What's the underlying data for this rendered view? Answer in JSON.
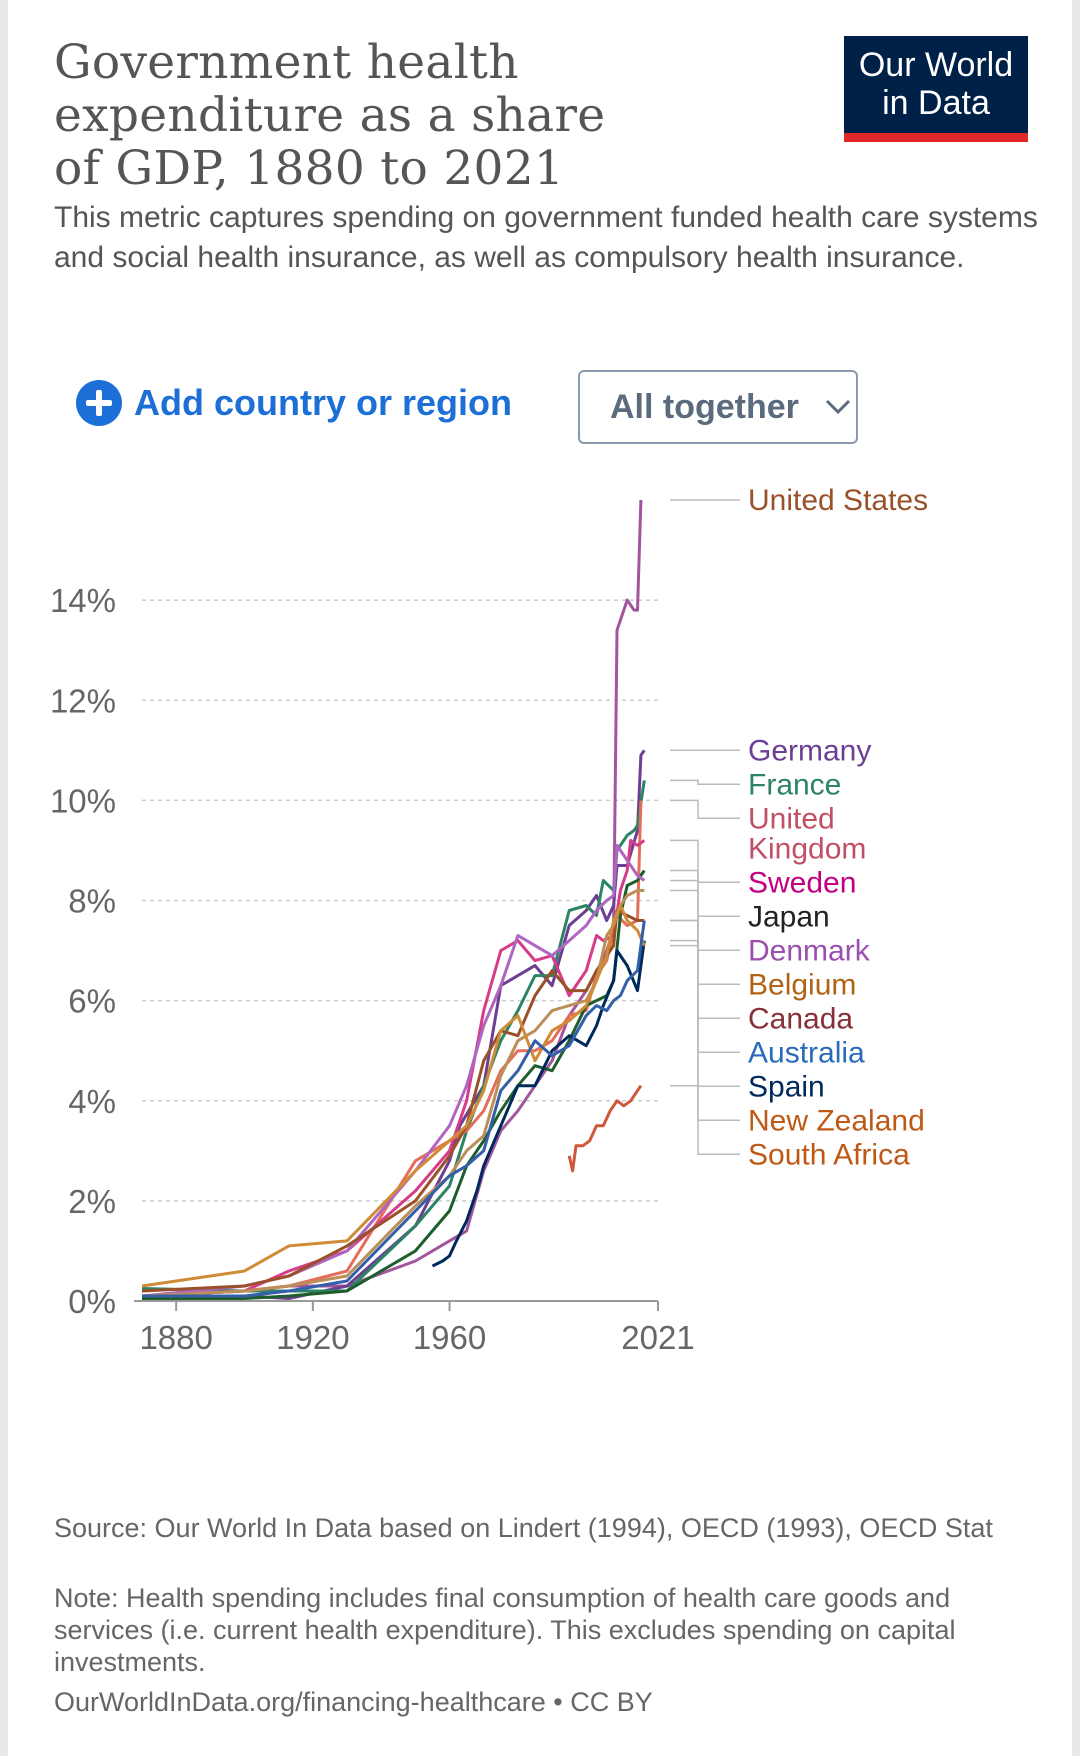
{
  "header": {
    "title": "Government health expenditure as a share of GDP, 1880 to 2021",
    "subtitle": "This metric captures spending on government funded health care systems and social health insurance, as well as compulsory health insurance.",
    "logo_line1": "Our World",
    "logo_line2": "in Data"
  },
  "controls": {
    "add_label": "Add country or region",
    "select_value": "All together"
  },
  "footer": {
    "source": "Source: Our World In Data based on Lindert (1994), OECD (1993), OECD Stat",
    "note": "Note: Health spending includes final consumption of health care goods and services (i.e. current health expenditure). This excludes spending on capital investments.",
    "link": "OurWorldInData.org/financing-healthcare • CC BY"
  },
  "chart_data": {
    "type": "line",
    "title": "Government health expenditure as a share of GDP, 1880 to 2021",
    "xlim": [
      1870,
      2021
    ],
    "ylim": [
      0,
      16
    ],
    "x_ticks": [
      {
        "value": 1880,
        "label": "1880"
      },
      {
        "value": 1920,
        "label": "1920"
      },
      {
        "value": 1960,
        "label": "1960"
      },
      {
        "value": 2021,
        "label": "2021"
      }
    ],
    "y_ticks": [
      {
        "value": 0,
        "label": "0%"
      },
      {
        "value": 2,
        "label": "2%"
      },
      {
        "value": 4,
        "label": "4%"
      },
      {
        "value": 6,
        "label": "6%"
      },
      {
        "value": 8,
        "label": "8%"
      },
      {
        "value": 10,
        "label": "10%"
      },
      {
        "value": 12,
        "label": "12%"
      },
      {
        "value": 14,
        "label": "14%"
      }
    ],
    "grid": true,
    "legend": "right-side line labels",
    "series": [
      {
        "name": "United States",
        "color": "#a2559c",
        "label_color": "#9a5129",
        "points": [
          [
            1870,
            0.1
          ],
          [
            1900,
            0.2
          ],
          [
            1913,
            0.3
          ],
          [
            1930,
            0.3
          ],
          [
            1950,
            0.8
          ],
          [
            1960,
            1.2
          ],
          [
            1965,
            1.4
          ],
          [
            1970,
            2.6
          ],
          [
            1975,
            3.4
          ],
          [
            1980,
            3.8
          ],
          [
            1985,
            4.3
          ],
          [
            1990,
            4.8
          ],
          [
            1995,
            5.7
          ],
          [
            2000,
            6.2
          ],
          [
            2005,
            6.8
          ],
          [
            2008,
            7.4
          ],
          [
            2009,
            13.4
          ],
          [
            2012,
            14.0
          ],
          [
            2014,
            13.8
          ],
          [
            2015,
            13.8
          ],
          [
            2016,
            16.0
          ]
        ]
      },
      {
        "name": "Germany",
        "color": "#6d3e91",
        "label_color": "#6d3e91",
        "points": [
          [
            1870,
            0.1
          ],
          [
            1900,
            0.1
          ],
          [
            1913,
            0.05
          ],
          [
            1930,
            0.3
          ],
          [
            1950,
            1.5
          ],
          [
            1960,
            2.8
          ],
          [
            1963,
            3.5
          ],
          [
            1970,
            4.3
          ],
          [
            1973,
            5.5
          ],
          [
            1975,
            6.3
          ],
          [
            1980,
            6.5
          ],
          [
            1985,
            6.7
          ],
          [
            1990,
            6.3
          ],
          [
            1995,
            7.5
          ],
          [
            2000,
            7.8
          ],
          [
            2003,
            8.1
          ],
          [
            2006,
            7.6
          ],
          [
            2008,
            7.9
          ],
          [
            2009,
            8.7
          ],
          [
            2012,
            8.7
          ],
          [
            2015,
            9.4
          ],
          [
            2016,
            10.9
          ],
          [
            2017,
            11.0
          ]
        ]
      },
      {
        "name": "France",
        "color": "#2c8465",
        "label_color": "#2c8465",
        "points": [
          [
            1870,
            0.25
          ],
          [
            1900,
            0.2
          ],
          [
            1913,
            0.2
          ],
          [
            1930,
            0.2
          ],
          [
            1950,
            1.5
          ],
          [
            1960,
            2.3
          ],
          [
            1965,
            3.4
          ],
          [
            1970,
            4.3
          ],
          [
            1975,
            5.2
          ],
          [
            1980,
            5.8
          ],
          [
            1985,
            6.5
          ],
          [
            1990,
            6.5
          ],
          [
            1995,
            7.8
          ],
          [
            2000,
            7.9
          ],
          [
            2003,
            7.7
          ],
          [
            2005,
            8.4
          ],
          [
            2008,
            8.2
          ],
          [
            2009,
            9.0
          ],
          [
            2012,
            9.3
          ],
          [
            2014,
            9.4
          ],
          [
            2015,
            9.5
          ],
          [
            2017,
            10.4
          ]
        ]
      },
      {
        "name": "United Kingdom",
        "color": "#e56e5a",
        "label_color": "#c15065",
        "points": [
          [
            1870,
            0.1
          ],
          [
            1900,
            0.2
          ],
          [
            1913,
            0.3
          ],
          [
            1930,
            0.6
          ],
          [
            1950,
            2.8
          ],
          [
            1955,
            3.0
          ],
          [
            1960,
            3.2
          ],
          [
            1965,
            3.4
          ],
          [
            1970,
            3.8
          ],
          [
            1975,
            4.6
          ],
          [
            1980,
            5.0
          ],
          [
            1985,
            5.0
          ],
          [
            1990,
            5.2
          ],
          [
            1995,
            5.7
          ],
          [
            2000,
            5.8
          ],
          [
            2003,
            6.5
          ],
          [
            2006,
            6.8
          ],
          [
            2009,
            7.7
          ],
          [
            2012,
            7.5
          ],
          [
            2015,
            7.6
          ],
          [
            2016,
            10.0
          ]
        ]
      },
      {
        "name": "Sweden",
        "color": "#d73c89",
        "label_color": "#c20080",
        "points": [
          [
            1870,
            0.1
          ],
          [
            1900,
            0.2
          ],
          [
            1913,
            0.6
          ],
          [
            1930,
            1.0
          ],
          [
            1950,
            2.2
          ],
          [
            1960,
            3.0
          ],
          [
            1965,
            4.0
          ],
          [
            1970,
            5.8
          ],
          [
            1975,
            7.0
          ],
          [
            1980,
            7.2
          ],
          [
            1985,
            6.8
          ],
          [
            1990,
            6.9
          ],
          [
            1995,
            6.1
          ],
          [
            2000,
            6.6
          ],
          [
            2003,
            7.3
          ],
          [
            2005,
            7.2
          ],
          [
            2008,
            7.3
          ],
          [
            2010,
            8.2
          ],
          [
            2012,
            8.6
          ],
          [
            2013,
            9.2
          ],
          [
            2015,
            9.1
          ],
          [
            2017,
            9.2
          ]
        ]
      },
      {
        "name": "Japan",
        "color": "#1d5e2c",
        "label_color": "#222222",
        "points": [
          [
            1870,
            0.05
          ],
          [
            1900,
            0.05
          ],
          [
            1913,
            0.1
          ],
          [
            1930,
            0.2
          ],
          [
            1950,
            1.0
          ],
          [
            1960,
            1.8
          ],
          [
            1965,
            2.7
          ],
          [
            1970,
            3.2
          ],
          [
            1975,
            3.8
          ],
          [
            1980,
            4.3
          ],
          [
            1985,
            4.7
          ],
          [
            1990,
            4.6
          ],
          [
            1995,
            5.2
          ],
          [
            2000,
            5.9
          ],
          [
            2003,
            6.0
          ],
          [
            2006,
            6.1
          ],
          [
            2008,
            6.4
          ],
          [
            2010,
            7.7
          ],
          [
            2012,
            8.3
          ],
          [
            2015,
            8.4
          ],
          [
            2017,
            8.6
          ]
        ]
      },
      {
        "name": "Denmark",
        "color": "#b065c2",
        "label_color": "#9a4fb0",
        "points": [
          [
            1870,
            0.1
          ],
          [
            1900,
            0.3
          ],
          [
            1913,
            0.5
          ],
          [
            1930,
            1.0
          ],
          [
            1950,
            2.6
          ],
          [
            1960,
            3.5
          ],
          [
            1965,
            4.3
          ],
          [
            1970,
            5.5
          ],
          [
            1975,
            6.3
          ],
          [
            1980,
            7.3
          ],
          [
            1985,
            7.1
          ],
          [
            1990,
            6.9
          ],
          [
            1995,
            7.2
          ],
          [
            2000,
            7.5
          ],
          [
            2003,
            7.8
          ],
          [
            2006,
            8.0
          ],
          [
            2008,
            8.1
          ],
          [
            2009,
            9.1
          ],
          [
            2012,
            8.8
          ],
          [
            2015,
            8.5
          ],
          [
            2017,
            8.4
          ]
        ]
      },
      {
        "name": "Canada",
        "color": "#9a5129",
        "label_color": "#883039",
        "points": [
          [
            1870,
            0.2
          ],
          [
            1900,
            0.3
          ],
          [
            1913,
            0.5
          ],
          [
            1930,
            1.1
          ],
          [
            1950,
            2.0
          ],
          [
            1960,
            2.9
          ],
          [
            1965,
            3.5
          ],
          [
            1970,
            4.8
          ],
          [
            1975,
            5.4
          ],
          [
            1980,
            5.3
          ],
          [
            1985,
            6.1
          ],
          [
            1990,
            6.6
          ],
          [
            1995,
            6.2
          ],
          [
            2000,
            6.2
          ],
          [
            2003,
            6.6
          ],
          [
            2006,
            6.9
          ],
          [
            2008,
            7.1
          ],
          [
            2009,
            7.8
          ],
          [
            2012,
            7.7
          ],
          [
            2015,
            7.6
          ],
          [
            2017,
            7.6
          ]
        ]
      },
      {
        "name": "Belgium",
        "color": "#bc8e5a",
        "label_color": "#b16214",
        "points": [
          [
            1870,
            0.1
          ],
          [
            1900,
            0.2
          ],
          [
            1913,
            0.3
          ],
          [
            1930,
            0.5
          ],
          [
            1950,
            1.9
          ],
          [
            1960,
            2.5
          ],
          [
            1965,
            3.0
          ],
          [
            1970,
            3.3
          ],
          [
            1975,
            4.5
          ],
          [
            1980,
            5.2
          ],
          [
            1985,
            5.4
          ],
          [
            1990,
            5.8
          ],
          [
            1995,
            5.9
          ],
          [
            2000,
            6.0
          ],
          [
            2003,
            6.4
          ],
          [
            2006,
            7.3
          ],
          [
            2008,
            7.5
          ],
          [
            2010,
            7.9
          ],
          [
            2012,
            8.1
          ],
          [
            2015,
            8.2
          ],
          [
            2017,
            8.2
          ]
        ]
      },
      {
        "name": "Spain",
        "color": "#00295b",
        "label_color": "#00295b",
        "points": [
          [
            1955,
            0.7
          ],
          [
            1958,
            0.8
          ],
          [
            1960,
            0.9
          ],
          [
            1962,
            1.2
          ],
          [
            1965,
            1.6
          ],
          [
            1968,
            2.2
          ],
          [
            1970,
            2.7
          ],
          [
            1975,
            3.5
          ],
          [
            1980,
            4.3
          ],
          [
            1985,
            4.3
          ],
          [
            1990,
            5.0
          ],
          [
            1995,
            5.3
          ],
          [
            2000,
            5.1
          ],
          [
            2003,
            5.5
          ],
          [
            2005,
            5.9
          ],
          [
            2008,
            6.4
          ],
          [
            2009,
            7.0
          ],
          [
            2012,
            6.7
          ],
          [
            2015,
            6.2
          ],
          [
            2017,
            7.2
          ]
        ]
      },
      {
        "name": "New Zealand",
        "color": "#d08b36",
        "label_color": "#c05917",
        "points": [
          [
            1870,
            0.3
          ],
          [
            1900,
            0.6
          ],
          [
            1913,
            1.1
          ],
          [
            1930,
            1.2
          ],
          [
            1950,
            2.6
          ],
          [
            1960,
            3.2
          ],
          [
            1965,
            3.5
          ],
          [
            1970,
            4.2
          ],
          [
            1975,
            5.4
          ],
          [
            1980,
            5.7
          ],
          [
            1985,
            4.8
          ],
          [
            1990,
            5.4
          ],
          [
            1995,
            5.6
          ],
          [
            2000,
            5.9
          ],
          [
            2003,
            6.4
          ],
          [
            2006,
            6.9
          ],
          [
            2008,
            7.6
          ],
          [
            2010,
            7.9
          ],
          [
            2012,
            7.6
          ],
          [
            2015,
            7.4
          ],
          [
            2017,
            7.1
          ]
        ]
      },
      {
        "name": "Australia",
        "color": "#3360a9",
        "label_color": "#286bbb",
        "points": [
          [
            1870,
            0.1
          ],
          [
            1900,
            0.1
          ],
          [
            1913,
            0.2
          ],
          [
            1930,
            0.4
          ],
          [
            1950,
            1.8
          ],
          [
            1960,
            2.5
          ],
          [
            1965,
            2.7
          ],
          [
            1970,
            3.0
          ],
          [
            1975,
            4.2
          ],
          [
            1980,
            4.6
          ],
          [
            1985,
            5.2
          ],
          [
            1990,
            4.9
          ],
          [
            1995,
            5.1
          ],
          [
            2000,
            5.7
          ],
          [
            2003,
            5.9
          ],
          [
            2006,
            5.8
          ],
          [
            2008,
            6.0
          ],
          [
            2010,
            6.1
          ],
          [
            2012,
            6.4
          ],
          [
            2015,
            6.6
          ],
          [
            2017,
            7.6
          ]
        ]
      },
      {
        "name": "South Africa",
        "color": "#d0573a",
        "label_color": "#be5915",
        "points": [
          [
            1995,
            2.9
          ],
          [
            1996,
            2.6
          ],
          [
            1997,
            3.1
          ],
          [
            1999,
            3.1
          ],
          [
            2001,
            3.2
          ],
          [
            2003,
            3.5
          ],
          [
            2005,
            3.5
          ],
          [
            2007,
            3.8
          ],
          [
            2009,
            4.0
          ],
          [
            2011,
            3.9
          ],
          [
            2013,
            4.0
          ],
          [
            2015,
            4.2
          ],
          [
            2016,
            4.3
          ]
        ]
      }
    ]
  }
}
